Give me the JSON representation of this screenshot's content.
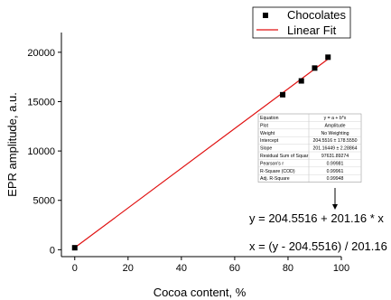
{
  "chart_data": {
    "type": "scatter",
    "xlabel": "Cocoa content, %",
    "ylabel": "EPR amplitude, a.u.",
    "xlim": [
      -5,
      100
    ],
    "ylim": [
      -700,
      22000
    ],
    "x_ticks": [
      "0",
      "20",
      "40",
      "60",
      "80",
      "100"
    ],
    "y_ticks": [
      "0",
      "5000",
      "10000",
      "15000",
      "20000"
    ],
    "x_tick_values": [
      0,
      20,
      40,
      60,
      80,
      100
    ],
    "y_tick_values": [
      0,
      5000,
      10000,
      15000,
      20000
    ],
    "series": [
      {
        "name": "Chocolates",
        "kind": "points",
        "x": [
          0,
          78,
          85,
          90,
          95
        ],
        "y": [
          200,
          15700,
          17100,
          18400,
          19500
        ]
      },
      {
        "name": "Linear Fit",
        "kind": "line",
        "intercept": 204.5516,
        "slope": 201.16,
        "x_range": [
          0,
          95
        ]
      }
    ],
    "legend": {
      "position": "top-right",
      "entries": [
        "Chocolates",
        "Linear Fit"
      ]
    },
    "fit_table": [
      [
        "Equation",
        "y = a + b*x"
      ],
      [
        "Plot",
        "Amplitude"
      ],
      [
        "Weight",
        "No Weighting"
      ],
      [
        "Intercept",
        "204.5516 ± 178.5550"
      ],
      [
        "Slope",
        "201.16449 ± 2.28864"
      ],
      [
        "Residual Sum of Squar",
        "97631.89274"
      ],
      [
        "Pearson's r",
        "0.99981"
      ],
      [
        "R-Square (COD)",
        "0.99961"
      ],
      [
        "Adj. R-Square",
        "0.99948"
      ]
    ],
    "annotations": {
      "equation": "y = 204.5516 + 201.16 * x",
      "inverse": "x = (y - 204.5516) / 201.16"
    },
    "colors": {
      "fit_line": "#e01010",
      "marker": "#000000"
    }
  }
}
